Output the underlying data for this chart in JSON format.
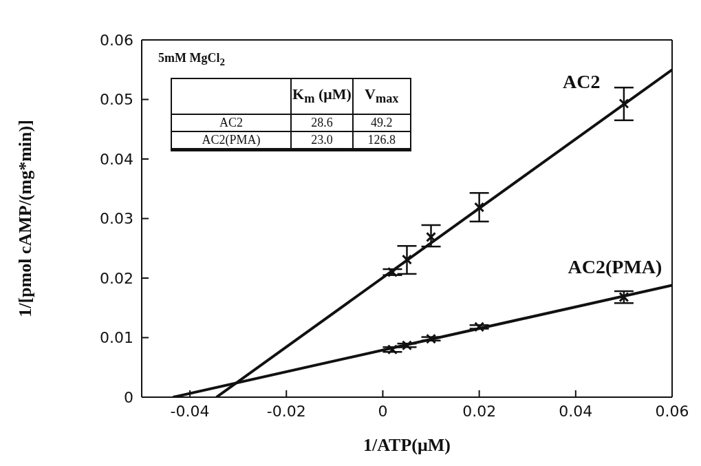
{
  "chart_data": {
    "type": "scatter",
    "xlabel": "1/ATP(μM)",
    "ylabel": "1/[pmol  cAMP/(mg*min)]",
    "xlim": [
      -0.05,
      0.06
    ],
    "xticks": [
      {
        "value": -0.05,
        "label": null
      },
      -0.04,
      -0.02,
      0,
      0.02,
      0.04,
      0.06
    ],
    "ylim": [
      0,
      0.06
    ],
    "yticks": [
      0,
      0.01,
      0.02,
      0.03,
      0.04,
      0.05,
      0.06
    ],
    "marker": "cross",
    "annotations": [
      "5mM  MgCl$_{2}$",
      "K$_{m}$ (μM)",
      "V$_{max}$",
      "AC2",
      "28.6",
      "49.2",
      "AC2(PMA)",
      "23.0",
      "126.8"
    ],
    "series": [
      {
        "name": "AC2",
        "color": "#111111",
        "x": [
          0.002,
          0.005,
          0.01,
          0.02,
          0.05
        ],
        "values": [
          0.021,
          0.0231,
          0.0269,
          0.0319,
          0.0493
        ],
        "errors": [
          0.0005,
          [
            0.0207,
            0.0254
          ],
          [
            0.0253,
            0.0289
          ],
          [
            0.0295,
            0.0343
          ],
          [
            0.0465,
            0.052
          ]
        ]
      },
      {
        "name": "AC2(PMA)",
        "color": "#111111",
        "x": [
          0.002,
          0.005,
          0.01,
          0.02,
          0.05
        ],
        "values": [
          0.008,
          0.0087,
          0.0098,
          0.0118,
          0.0168
        ],
        "errors": [
          0.0004,
          0.0003,
          0.0003,
          0.0003,
          0.001
        ]
      },
      {
        "type": "line",
        "marker": "none",
        "color": "#111111",
        "x": [
          -0.0345,
          0.06
        ],
        "values": [
          0,
          0.055
        ]
      },
      {
        "type": "line",
        "marker": "none",
        "color": "#111111",
        "x": [
          -0.0435,
          0.06
        ],
        "values": [
          0,
          0.0188
        ]
      }
    ]
  }
}
